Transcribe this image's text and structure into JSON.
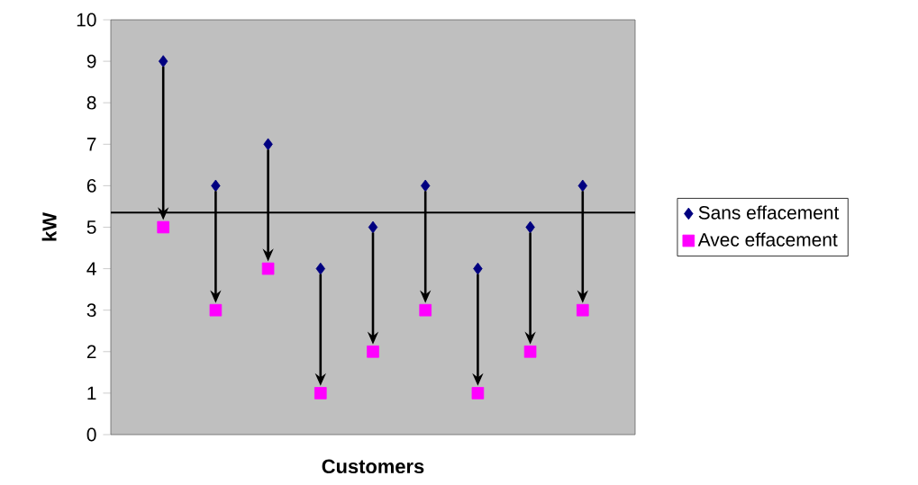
{
  "chart_data": {
    "type": "scatter",
    "xlabel": "Customers",
    "ylabel": "kW",
    "categories": [
      null,
      null,
      null,
      null,
      null,
      null,
      null,
      null,
      null
    ],
    "series": [
      {
        "name": "Sans effacement",
        "color": "#000080",
        "marker": "diamond",
        "values": [
          9,
          6,
          7,
          4,
          5,
          6,
          4,
          5,
          6
        ]
      },
      {
        "name": "Avec effacement",
        "color": "#ff00ff",
        "marker": "square",
        "values": [
          5,
          3,
          4,
          1,
          2,
          3,
          1,
          2,
          3
        ]
      }
    ],
    "ylim": [
      0,
      10
    ],
    "yticks": [
      0,
      1,
      2,
      3,
      4,
      5,
      6,
      7,
      8,
      9,
      10
    ],
    "ref_lines": [
      {
        "axis": "y",
        "value": 5.35,
        "color": "#000000"
      }
    ],
    "grid": false,
    "legend": "right",
    "tick_labels": "y"
  }
}
